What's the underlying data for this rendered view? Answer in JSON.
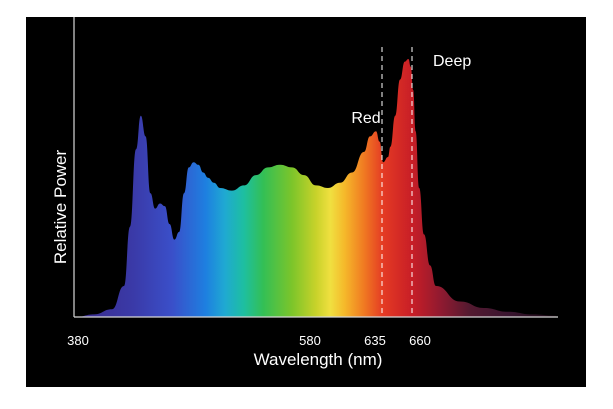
{
  "chart_data": {
    "type": "area",
    "title": "",
    "xlabel": "Wavelength (nm)",
    "ylabel": "Relative Power",
    "tick_labels": [
      "380",
      "580",
      "635",
      "660"
    ],
    "xlim": [
      380,
      780
    ],
    "ylim": [
      0,
      1
    ],
    "grid": false,
    "legend": "none",
    "annotations": [
      {
        "label": "Red",
        "x": 635
      },
      {
        "label": "Deep",
        "x": 660
      }
    ],
    "series": [
      {
        "x": [
          380,
          395,
          410,
          420,
          425,
          430,
          434,
          438,
          442,
          446,
          450,
          454,
          458,
          462,
          466,
          470,
          474,
          478,
          482,
          486,
          490,
          495,
          500,
          510,
          520,
          530,
          540,
          550,
          560,
          570,
          580,
          590,
          600,
          610,
          620,
          625,
          630,
          633,
          636,
          640,
          642,
          646,
          650,
          654,
          657,
          659,
          661,
          663,
          666,
          670,
          675,
          680,
          700,
          720,
          740,
          760,
          780
        ],
        "values": [
          0.0,
          0.01,
          0.03,
          0.12,
          0.35,
          0.65,
          0.78,
          0.7,
          0.48,
          0.42,
          0.44,
          0.43,
          0.36,
          0.3,
          0.33,
          0.48,
          0.58,
          0.6,
          0.59,
          0.56,
          0.54,
          0.52,
          0.5,
          0.49,
          0.51,
          0.55,
          0.58,
          0.59,
          0.58,
          0.55,
          0.51,
          0.5,
          0.52,
          0.56,
          0.64,
          0.7,
          0.72,
          0.68,
          0.6,
          0.62,
          0.66,
          0.78,
          0.92,
          0.99,
          1.0,
          0.97,
          0.88,
          0.72,
          0.5,
          0.32,
          0.2,
          0.12,
          0.06,
          0.035,
          0.02,
          0.01,
          0.005
        ]
      }
    ]
  }
}
